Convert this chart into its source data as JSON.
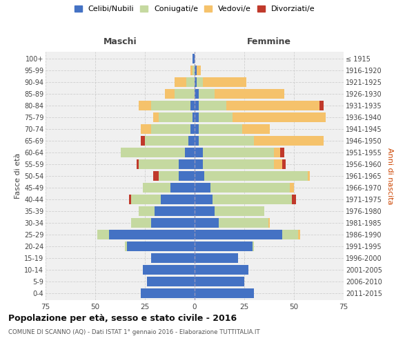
{
  "age_groups": [
    "0-4",
    "5-9",
    "10-14",
    "15-19",
    "20-24",
    "25-29",
    "30-34",
    "35-39",
    "40-44",
    "45-49",
    "50-54",
    "55-59",
    "60-64",
    "65-69",
    "70-74",
    "75-79",
    "80-84",
    "85-89",
    "90-94",
    "95-99",
    "100+"
  ],
  "birth_years": [
    "2011-2015",
    "2006-2010",
    "2001-2005",
    "1996-2000",
    "1991-1995",
    "1986-1990",
    "1981-1985",
    "1976-1980",
    "1971-1975",
    "1966-1970",
    "1961-1965",
    "1956-1960",
    "1951-1955",
    "1946-1950",
    "1941-1945",
    "1936-1940",
    "1931-1935",
    "1926-1930",
    "1921-1925",
    "1916-1920",
    "≤ 1915"
  ],
  "male_celibi": [
    27,
    24,
    26,
    22,
    34,
    43,
    22,
    20,
    17,
    12,
    8,
    8,
    5,
    3,
    2,
    1,
    2,
    0,
    0,
    0,
    1
  ],
  "male_coniugati": [
    0,
    0,
    0,
    0,
    1,
    6,
    10,
    8,
    15,
    14,
    10,
    20,
    32,
    22,
    20,
    17,
    20,
    10,
    4,
    1,
    0
  ],
  "male_vedovi": [
    0,
    0,
    0,
    0,
    0,
    0,
    0,
    0,
    0,
    0,
    0,
    0,
    0,
    0,
    5,
    3,
    6,
    5,
    6,
    1,
    0
  ],
  "male_divorziati": [
    0,
    0,
    0,
    0,
    0,
    0,
    0,
    0,
    1,
    0,
    3,
    1,
    0,
    2,
    0,
    0,
    0,
    0,
    0,
    0,
    0
  ],
  "female_nubili": [
    30,
    25,
    27,
    22,
    29,
    44,
    12,
    10,
    9,
    8,
    5,
    4,
    4,
    2,
    2,
    2,
    2,
    2,
    1,
    1,
    0
  ],
  "female_coniugate": [
    0,
    0,
    0,
    0,
    1,
    8,
    25,
    25,
    40,
    40,
    52,
    36,
    36,
    28,
    22,
    17,
    14,
    8,
    3,
    0,
    0
  ],
  "female_vedove": [
    0,
    0,
    0,
    0,
    0,
    1,
    1,
    0,
    0,
    2,
    1,
    4,
    3,
    35,
    14,
    47,
    47,
    35,
    22,
    2,
    0
  ],
  "female_divorziate": [
    0,
    0,
    0,
    0,
    0,
    0,
    0,
    0,
    2,
    0,
    0,
    2,
    2,
    0,
    0,
    0,
    2,
    0,
    0,
    0,
    0
  ],
  "color_celibi": "#4472c4",
  "color_coniugati": "#c5d9a0",
  "color_vedovi": "#f5c26b",
  "color_divorziati": "#c0392b",
  "title": "Popolazione per età, sesso e stato civile - 2016",
  "subtitle": "COMUNE DI SCANNO (AQ) - Dati ISTAT 1° gennaio 2016 - Elaborazione TUTTITALIA.IT",
  "legend_labels": [
    "Celibi/Nubili",
    "Coniugati/e",
    "Vedovi/e",
    "Divorziati/e"
  ],
  "bg_plot": "#f0f0f0",
  "bg_fig": "#ffffff",
  "grid_color": "#cccccc"
}
